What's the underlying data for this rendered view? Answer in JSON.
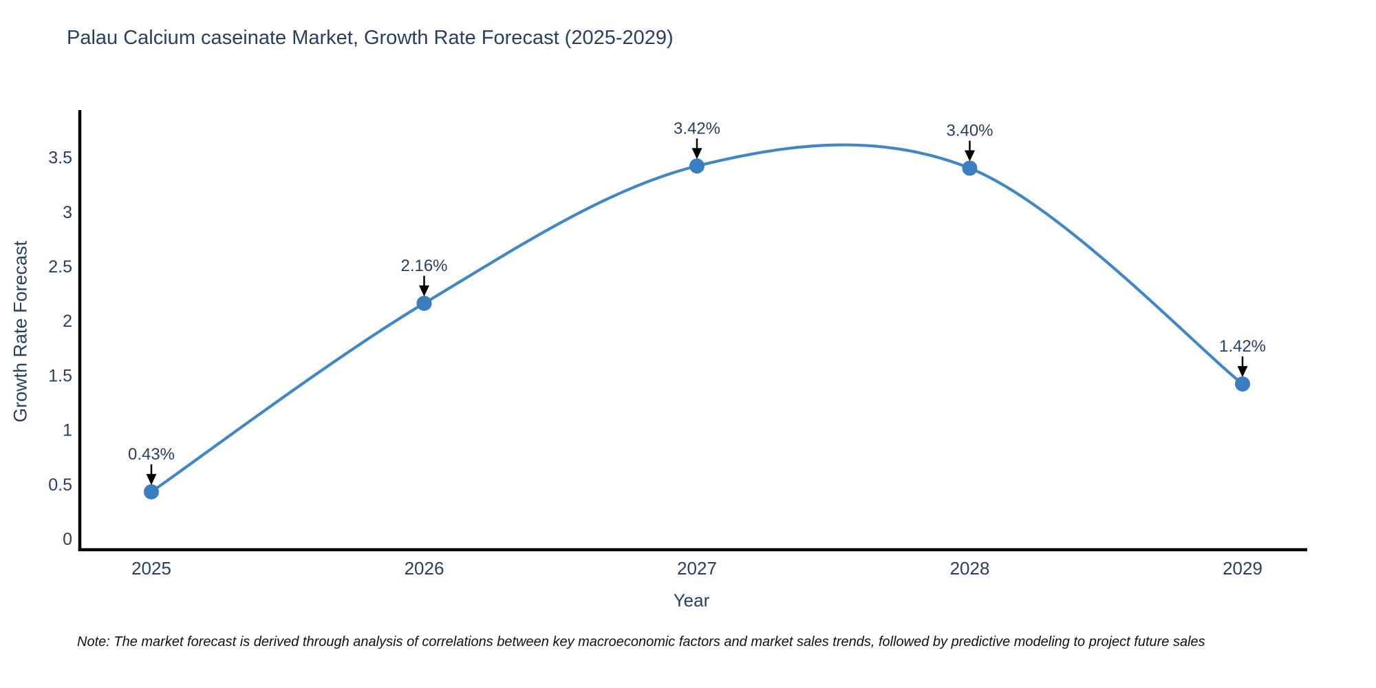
{
  "window": {
    "background": "#ffffff"
  },
  "note": {
    "text": "Note: The market forecast is derived through analysis of correlations between key macroeconomic factors and market sales trends, followed by predictive modeling to project future sales"
  },
  "chart_data": {
    "type": "line",
    "title": "Palau Calcium caseinate Market, Growth Rate Forecast (2025-2029)",
    "xlabel": "Year",
    "ylabel": "Growth Rate Forecast",
    "categories": [
      "2025",
      "2026",
      "2027",
      "2028",
      "2029"
    ],
    "series": [
      {
        "name": "Growth Rate Forecast",
        "values": [
          0.43,
          2.16,
          3.42,
          3.4,
          1.42
        ]
      }
    ],
    "point_labels": [
      "0.43%",
      "2.16%",
      "3.42%",
      "3.40%",
      "1.42%"
    ],
    "yticks": [
      "0",
      "0.5",
      "1",
      "1.5",
      "2",
      "2.5",
      "3",
      "3.5"
    ],
    "ylim": [
      -0.11,
      3.93
    ],
    "line_shape": "spline",
    "grid": false,
    "legend_position": "none",
    "markers": true,
    "annotations": "percentage value label with downward black arrow above each data point",
    "colors": {
      "line": "#4286c4",
      "marker": "#3a7ebf",
      "axis": "#000000",
      "arrow": "#000000",
      "title_text": "#2a3f5f",
      "tick_text": "#2a3f5f",
      "axis_title_text": "#2a3f5f",
      "annotation_text": "#2a3f5f",
      "note_text": "#111111",
      "background": "#ffffff"
    }
  }
}
